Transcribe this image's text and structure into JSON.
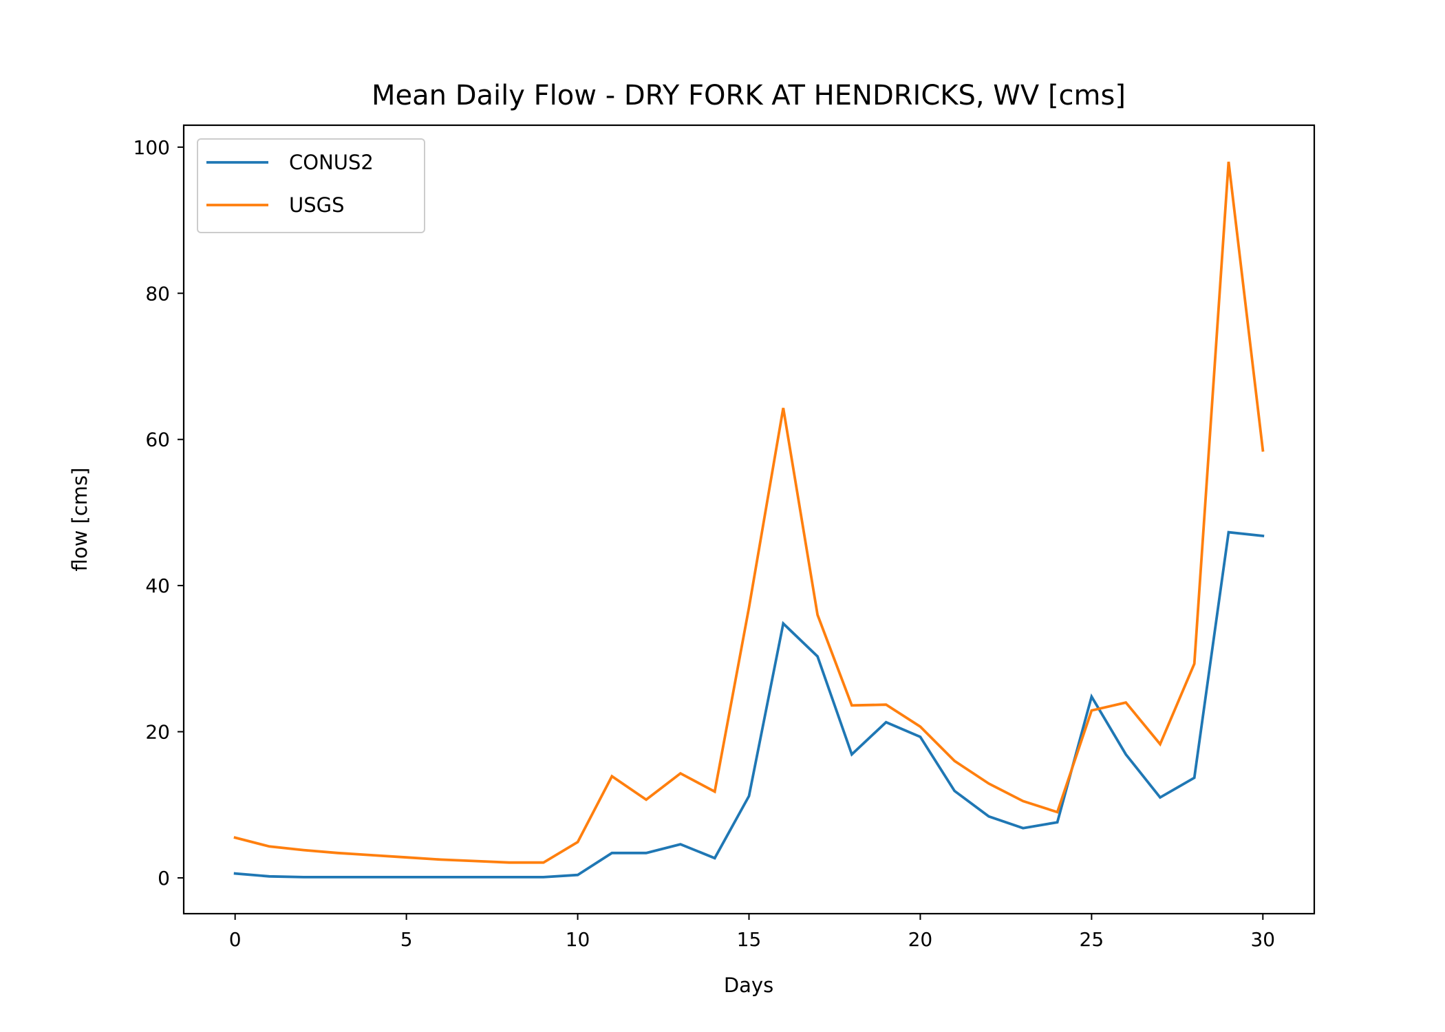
{
  "chart_data": {
    "type": "line",
    "title": "Mean Daily Flow - DRY FORK AT HENDRICKS, WV [cms]",
    "xlabel": "Days",
    "ylabel": "flow [cms]",
    "xlim": [
      -1.5,
      31.5
    ],
    "ylim": [
      -4.9,
      103
    ],
    "xticks": [
      0,
      5,
      10,
      15,
      20,
      25,
      30
    ],
    "yticks": [
      0,
      20,
      40,
      60,
      80,
      100
    ],
    "grid": false,
    "legend_position": "upper left",
    "x": [
      0,
      1,
      2,
      3,
      4,
      5,
      6,
      7,
      8,
      9,
      10,
      11,
      12,
      13,
      14,
      15,
      16,
      17,
      18,
      19,
      20,
      21,
      22,
      23,
      24,
      25,
      26,
      27,
      28,
      29,
      30
    ],
    "series": [
      {
        "name": "CONUS2",
        "color": "#1f77b4",
        "values": [
          0.6,
          0.2,
          0.1,
          0.1,
          0.1,
          0.1,
          0.1,
          0.1,
          0.1,
          0.1,
          0.4,
          3.4,
          3.4,
          4.6,
          2.7,
          11.2,
          34.8,
          30.3,
          16.9,
          21.3,
          19.3,
          11.9,
          8.4,
          6.8,
          7.6,
          24.8,
          16.9,
          11.0,
          13.7,
          47.3,
          46.8
        ]
      },
      {
        "name": "USGS",
        "color": "#ff7f0e",
        "values": [
          5.5,
          4.3,
          3.8,
          3.4,
          3.1,
          2.8,
          2.5,
          2.3,
          2.1,
          2.1,
          4.9,
          13.9,
          10.7,
          14.3,
          11.8,
          37.0,
          64.3,
          36.0,
          23.6,
          23.7,
          20.7,
          16.0,
          12.9,
          10.5,
          9.0,
          22.9,
          24.0,
          18.3,
          29.3,
          98.0,
          58.5
        ]
      }
    ]
  }
}
